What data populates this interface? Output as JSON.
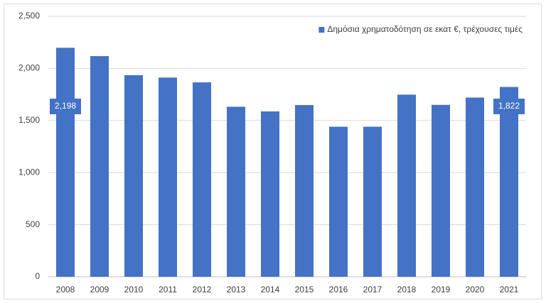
{
  "chart_data": {
    "type": "bar",
    "categories": [
      "2008",
      "2009",
      "2010",
      "2011",
      "2012",
      "2013",
      "2014",
      "2015",
      "2016",
      "2017",
      "2018",
      "2019",
      "2020",
      "2021"
    ],
    "series": [
      {
        "name": "Δημόσια χρηματοδότηση σε εκατ €, τρέχουσες τιμές",
        "color": "#4472c4",
        "values": [
          2198,
          2118,
          1935,
          1912,
          1866,
          1632,
          1587,
          1648,
          1440,
          1440,
          1748,
          1650,
          1720,
          1822
        ],
        "value_labels": [
          "2,198",
          null,
          null,
          null,
          null,
          null,
          null,
          null,
          null,
          null,
          null,
          null,
          null,
          "1,822"
        ]
      }
    ],
    "ylim": [
      0,
      2500
    ],
    "yticks": [
      0,
      500,
      {
        "value": 1000,
        "label": "1,000"
      },
      {
        "value": 1500,
        "label": "1,500"
      },
      {
        "value": 2000,
        "label": "2,000"
      },
      {
        "value": 2500,
        "label": "2,500"
      }
    ],
    "grid": true,
    "legend": "top-right"
  }
}
